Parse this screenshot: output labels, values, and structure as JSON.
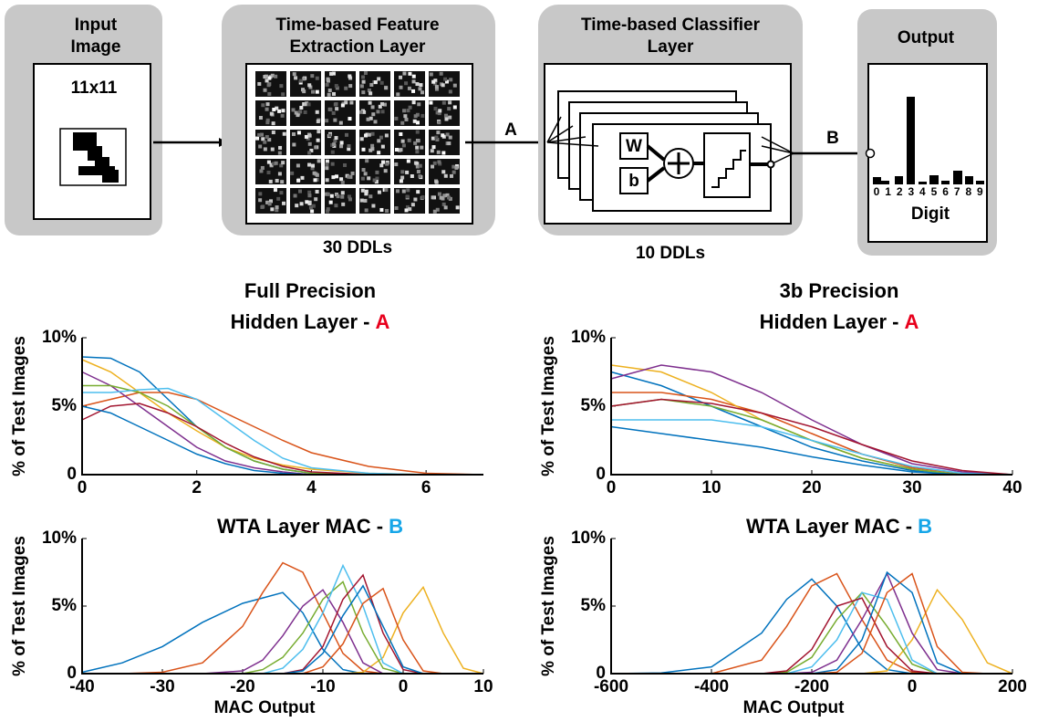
{
  "diagram": {
    "input": {
      "title": [
        "Input",
        "Image"
      ],
      "size": "11x11"
    },
    "feature": {
      "title": [
        "Time-based Feature",
        "Extraction Layer"
      ],
      "count": "30 DDLs"
    },
    "classifier": {
      "title": [
        "Time-based Classifier",
        "Layer"
      ],
      "count": "10 DDLs",
      "weight": "W",
      "bias": "b"
    },
    "output": {
      "title": "Output",
      "digits": [
        "0",
        "1",
        "2",
        "3",
        "4",
        "5",
        "6",
        "7",
        "8",
        "9"
      ],
      "axis_label": "Digit"
    },
    "signals": [
      {
        "label": "A",
        "color": "#e8001c"
      },
      {
        "label": "B",
        "color": "#16a6e8"
      }
    ]
  },
  "chart_data": [
    {
      "type": "line",
      "supertitle": "Full Precision",
      "title": "Hidden Layer -",
      "title_tag": "A",
      "title_tag_color": "#e8001c",
      "y_label": "% of Test Images",
      "x": [
        0,
        0.5,
        1,
        1.5,
        2,
        2.5,
        3,
        3.5,
        4,
        5,
        6,
        7
      ],
      "xlim": [
        0,
        7
      ],
      "xticks": [
        0,
        2,
        4,
        6
      ],
      "ylim": [
        0,
        10
      ],
      "yticks": [
        0,
        {
          "value": 5,
          "label": "5%"
        },
        {
          "value": 10,
          "label": "10%"
        }
      ],
      "series": [
        {
          "color": "#0072bd",
          "values": [
            8.6,
            8.5,
            7.5,
            5.5,
            3.5,
            2,
            1,
            0.4,
            0.1,
            0,
            0,
            0
          ]
        },
        {
          "color": "#d95319",
          "values": [
            5,
            5.5,
            6,
            6,
            5.5,
            4.5,
            3.5,
            2.5,
            1.6,
            0.6,
            0.1,
            0
          ]
        },
        {
          "color": "#edb120",
          "values": [
            8.4,
            7.5,
            6,
            4.5,
            3.2,
            2,
            1.2,
            0.7,
            0.4,
            0.1,
            0,
            0
          ]
        },
        {
          "color": "#7e2f8e",
          "values": [
            7.5,
            6.5,
            5,
            3.5,
            2,
            1,
            0.5,
            0.2,
            0,
            0,
            0,
            0
          ]
        },
        {
          "color": "#77ac30",
          "values": [
            6.5,
            6.5,
            6,
            5,
            3.5,
            2,
            1,
            0.4,
            0.1,
            0,
            0,
            0
          ]
        },
        {
          "color": "#4dbeee",
          "values": [
            6,
            6,
            6.2,
            6.3,
            5.5,
            4,
            2.5,
            1.2,
            0.5,
            0.1,
            0,
            0
          ]
        },
        {
          "color": "#a2142f",
          "values": [
            4,
            5,
            5.2,
            4.5,
            3.5,
            2.3,
            1.3,
            0.6,
            0.2,
            0,
            0,
            0
          ]
        },
        {
          "color": "#0072bd",
          "values": [
            5,
            4.5,
            3.5,
            2.5,
            1.5,
            0.8,
            0.3,
            0.1,
            0,
            0,
            0,
            0
          ]
        }
      ]
    },
    {
      "type": "line",
      "supertitle": "3b Precision",
      "title": "Hidden Layer -",
      "title_tag": "A",
      "title_tag_color": "#e8001c",
      "y_label": "% of Test Images",
      "x": [
        0,
        5,
        10,
        15,
        20,
        25,
        30,
        35,
        40
      ],
      "xlim": [
        0,
        40
      ],
      "xticks": [
        0,
        10,
        20,
        30,
        40
      ],
      "ylim": [
        0,
        10
      ],
      "yticks": [
        0,
        {
          "value": 5,
          "label": "5%"
        },
        {
          "value": 10,
          "label": "10%"
        }
      ],
      "series": [
        {
          "color": "#0072bd",
          "values": [
            7.5,
            6.5,
            5,
            3.5,
            2,
            1,
            0.3,
            0,
            0
          ]
        },
        {
          "color": "#d95319",
          "values": [
            6,
            6,
            5.5,
            4.5,
            3,
            1.5,
            0.5,
            0.1,
            0
          ]
        },
        {
          "color": "#edb120",
          "values": [
            8,
            7.5,
            6,
            4,
            2.5,
            1.2,
            0.4,
            0,
            0
          ]
        },
        {
          "color": "#7e2f8e",
          "values": [
            7,
            8,
            7.5,
            6,
            4,
            2.2,
            0.8,
            0.2,
            0
          ]
        },
        {
          "color": "#77ac30",
          "values": [
            5,
            5.5,
            5,
            4,
            2.5,
            1.2,
            0.4,
            0,
            0
          ]
        },
        {
          "color": "#4dbeee",
          "values": [
            4,
            4,
            4,
            3.5,
            2.5,
            1.5,
            0.6,
            0.1,
            0
          ]
        },
        {
          "color": "#a2142f",
          "values": [
            5,
            5.5,
            5.2,
            4.5,
            3.5,
            2.2,
            1,
            0.3,
            0
          ]
        },
        {
          "color": "#0072bd",
          "values": [
            3.5,
            3,
            2.5,
            2,
            1.3,
            0.7,
            0.2,
            0,
            0
          ]
        }
      ]
    },
    {
      "type": "line",
      "title": "WTA Layer MAC -",
      "title_tag": "B",
      "title_tag_color": "#16a6e8",
      "y_label": "% of Test Images",
      "x_label": "MAC Output",
      "x": [
        -40,
        -35,
        -30,
        -25,
        -20,
        -17.5,
        -15,
        -12.5,
        -10,
        -7.5,
        -5,
        -2.5,
        0,
        2.5,
        5,
        7.5,
        10
      ],
      "xlim": [
        -40,
        10
      ],
      "xticks": [
        -40,
        -30,
        -20,
        -10,
        0,
        10
      ],
      "ylim": [
        0,
        10
      ],
      "yticks": [
        0,
        {
          "value": 5,
          "label": "5%"
        },
        {
          "value": 10,
          "label": "10%"
        }
      ],
      "series": [
        {
          "color": "#0072bd",
          "values": [
            0.1,
            0.8,
            2,
            3.8,
            5.2,
            5.6,
            6,
            4.5,
            1.8,
            0.3,
            0,
            0,
            0,
            0,
            0,
            0,
            0
          ]
        },
        {
          "color": "#d95319",
          "values": [
            0,
            0,
            0.1,
            0.8,
            3.5,
            6,
            8.2,
            7.5,
            4.5,
            1.5,
            0.2,
            0,
            0,
            0,
            0,
            0,
            0
          ]
        },
        {
          "color": "#edb120",
          "values": [
            0,
            0,
            0,
            0,
            0,
            0,
            0,
            0,
            0,
            0,
            0.1,
            1.2,
            4.5,
            6.4,
            3,
            0.4,
            0
          ]
        },
        {
          "color": "#7e2f8e",
          "values": [
            0,
            0,
            0,
            0,
            0.2,
            1,
            2.8,
            5,
            6.2,
            3.8,
            0.8,
            0,
            0,
            0,
            0,
            0,
            0
          ]
        },
        {
          "color": "#77ac30",
          "values": [
            0,
            0,
            0,
            0,
            0,
            0.3,
            1.2,
            3,
            5.5,
            6.8,
            3,
            0.4,
            0,
            0,
            0,
            0,
            0
          ]
        },
        {
          "color": "#4dbeee",
          "values": [
            0,
            0,
            0,
            0,
            0,
            0,
            0.4,
            1.8,
            4.5,
            8,
            5,
            0.8,
            0,
            0,
            0,
            0,
            0
          ]
        },
        {
          "color": "#a2142f",
          "values": [
            0,
            0,
            0,
            0,
            0,
            0,
            0,
            0.3,
            2,
            5.5,
            7.3,
            3,
            0.3,
            0,
            0,
            0,
            0
          ]
        },
        {
          "color": "#0072bd",
          "values": [
            0,
            0,
            0,
            0,
            0,
            0,
            0,
            0.2,
            1.5,
            4.3,
            6.5,
            3.5,
            0.5,
            0,
            0,
            0,
            0
          ]
        },
        {
          "color": "#d95319",
          "values": [
            0,
            0,
            0,
            0,
            0,
            0,
            0,
            0,
            0.5,
            2.2,
            5.2,
            6.3,
            2.5,
            0.2,
            0,
            0,
            0
          ]
        }
      ]
    },
    {
      "type": "line",
      "title": "WTA Layer MAC -",
      "title_tag": "B",
      "title_tag_color": "#16a6e8",
      "y_label": "% of Test Images",
      "x_label": "MAC Output",
      "x": [
        -600,
        -500,
        -400,
        -300,
        -250,
        -200,
        -150,
        -100,
        -50,
        0,
        50,
        100,
        150,
        200
      ],
      "xlim": [
        -600,
        200
      ],
      "xticks": [
        -600,
        -400,
        -200,
        0,
        200
      ],
      "ylim": [
        0,
        10
      ],
      "yticks": [
        0,
        {
          "value": 5,
          "label": "5%"
        },
        {
          "value": 10,
          "label": "10%"
        }
      ],
      "series": [
        {
          "color": "#0072bd",
          "values": [
            0,
            0.05,
            0.5,
            3,
            5.5,
            7,
            5,
            1.8,
            0.3,
            0,
            0,
            0,
            0,
            0
          ]
        },
        {
          "color": "#d95319",
          "values": [
            0,
            0,
            0,
            1,
            3.5,
            6.5,
            7.4,
            4,
            1,
            0.1,
            0,
            0,
            0,
            0
          ]
        },
        {
          "color": "#edb120",
          "values": [
            0,
            0,
            0,
            0,
            0,
            0,
            0,
            0,
            0.2,
            2.5,
            6.2,
            4,
            0.8,
            0
          ]
        },
        {
          "color": "#7e2f8e",
          "values": [
            0,
            0,
            0,
            0,
            0,
            0.1,
            1,
            4,
            7.4,
            3,
            0.3,
            0,
            0,
            0
          ]
        },
        {
          "color": "#77ac30",
          "values": [
            0,
            0,
            0,
            0,
            0.1,
            1.2,
            4,
            6,
            3.5,
            0.7,
            0,
            0,
            0,
            0
          ]
        },
        {
          "color": "#4dbeee",
          "values": [
            0,
            0,
            0,
            0,
            0,
            0.5,
            2.5,
            6,
            5.5,
            1,
            0,
            0,
            0,
            0
          ]
        },
        {
          "color": "#a2142f",
          "values": [
            0,
            0,
            0,
            0,
            0.2,
            1.8,
            5,
            5.6,
            2,
            0.2,
            0,
            0,
            0,
            0
          ]
        },
        {
          "color": "#0072bd",
          "values": [
            0,
            0,
            0,
            0,
            0,
            0,
            0.3,
            2.5,
            7.5,
            6,
            0.8,
            0,
            0,
            0
          ]
        },
        {
          "color": "#d95319",
          "values": [
            0,
            0,
            0,
            0,
            0,
            0,
            0.1,
            1.5,
            6,
            7.4,
            2,
            0.1,
            0,
            0
          ]
        }
      ]
    }
  ]
}
